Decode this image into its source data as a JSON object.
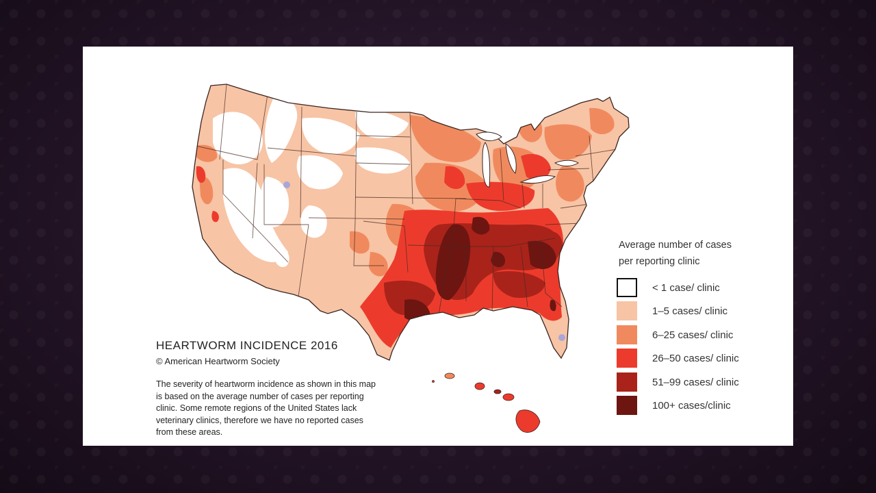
{
  "map": {
    "title": "HEARTWORM INCIDENCE 2016",
    "credit": "© American Heartworm Society",
    "note": "The severity of heartworm incidence as shown in this map is based on the average number of cases per reporting clinic.  Some remote regions of the United States lack veterinary clinics, therefore we have no reported cases from these areas.",
    "region_shown": "United States",
    "no_data_color": "#a9a6d8"
  },
  "legend": {
    "title_line1": "Average number of cases",
    "title_line2": "per reporting clinic",
    "items": [
      {
        "label": "< 1 case/ clinic",
        "color": "#ffffff",
        "outlined": true
      },
      {
        "label": "1–5 cases/ clinic",
        "color": "#f7c4a5"
      },
      {
        "label": "6–25  cases/ clinic",
        "color": "#f08a5e"
      },
      {
        "label": "26–50  cases/ clinic",
        "color": "#ec3b2c"
      },
      {
        "label": "51–99 cases/ clinic",
        "color": "#a9231a"
      },
      {
        "label": "100+ cases/clinic",
        "color": "#6d1511"
      }
    ]
  }
}
